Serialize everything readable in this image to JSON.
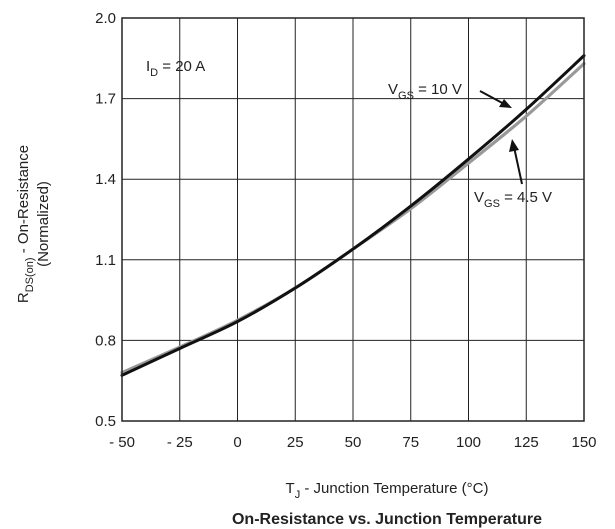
{
  "chart_data": {
    "type": "line",
    "title": "On-Resistance vs. Junction Temperature",
    "xlabel": {
      "main": "T",
      "sub": "J",
      "rest": " - Junction Temperature (°C)"
    },
    "ylabel": {
      "main": "R",
      "sub": "DS(on)",
      "rest": " - On-Resistance",
      "line2": "(Normalized)"
    },
    "xlim": [
      -50,
      150
    ],
    "ylim": [
      0.5,
      2.0
    ],
    "xticks": [
      -50,
      -25,
      0,
      25,
      50,
      75,
      100,
      125,
      150
    ],
    "xtick_labels": [
      "- 50",
      "- 25",
      "0",
      "25",
      "50",
      "75",
      "100",
      "125",
      "150"
    ],
    "yticks": [
      0.5,
      0.8,
      1.1,
      1.4,
      1.7,
      2.0
    ],
    "ytick_labels": [
      "0.5",
      "0.8",
      "1.1",
      "1.4",
      "1.7",
      "2.0"
    ],
    "grid": true,
    "condition": {
      "main": "I",
      "sub": "D",
      "rest": " = 20 A"
    },
    "series": [
      {
        "name": "V_GS = 10 V",
        "label": {
          "main": "V",
          "sub": "GS",
          "rest": " = 10 V"
        },
        "color": "#111111",
        "x": [
          -50,
          -25,
          0,
          25,
          50,
          75,
          100,
          125,
          150
        ],
        "y": [
          0.67,
          0.77,
          0.87,
          0.995,
          1.14,
          1.3,
          1.475,
          1.66,
          1.86
        ]
      },
      {
        "name": "V_GS = 4.5 V",
        "label": {
          "main": "V",
          "sub": "GS",
          "rest": " = 4.5 V"
        },
        "color": "#999999",
        "x": [
          -50,
          -25,
          0,
          25,
          50,
          75,
          100,
          125,
          150
        ],
        "y": [
          0.68,
          0.775,
          0.875,
          0.995,
          1.14,
          1.29,
          1.46,
          1.635,
          1.83
        ]
      }
    ]
  }
}
